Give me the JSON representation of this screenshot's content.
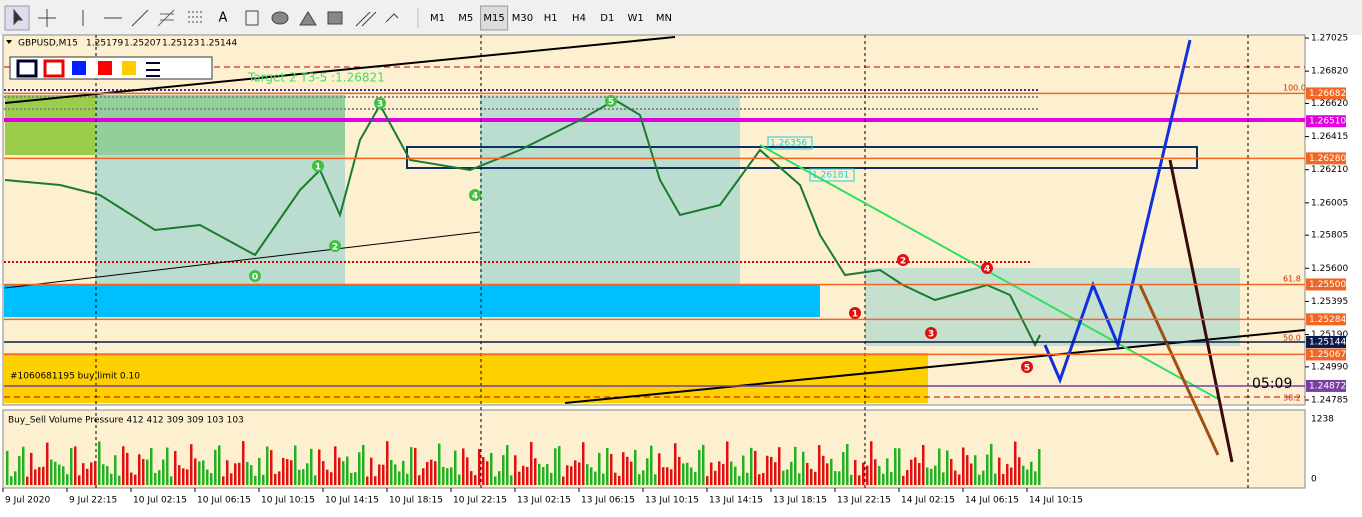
{
  "toolbar": {
    "tools": [
      "A"
    ],
    "timeframes": [
      "M1",
      "M5",
      "M15",
      "M30",
      "H1",
      "H4",
      "D1",
      "W1",
      "MN"
    ],
    "active_timeframe": "M15"
  },
  "header": {
    "symbol": "GBPUSD,M15",
    "ohlc": [
      "1.25179",
      "1.25207",
      "1.25123",
      "1.25144"
    ]
  },
  "price_axis": {
    "ticks": [
      "1.27025",
      "1.26820",
      "1.26620",
      "1.26415",
      "1.26210",
      "1.26005",
      "1.25805",
      "1.25600",
      "1.25395",
      "1.25190",
      "1.24990",
      "1.24785"
    ],
    "markers": [
      {
        "label": "1.26682",
        "color": "#f26522"
      },
      {
        "label": "1.26510",
        "color": "#e000e0"
      },
      {
        "label": "1.26280",
        "color": "#f26522"
      },
      {
        "label": "1.25500",
        "color": "#f26522"
      },
      {
        "label": "1.25284",
        "color": "#f26522"
      },
      {
        "label": "1.25144",
        "color": "#0a1a4a"
      },
      {
        "label": "1.25067",
        "color": "#f26522"
      },
      {
        "label": "1.24872",
        "color": "#7a3fa0"
      }
    ]
  },
  "time_axis": {
    "labels": [
      "9 Jul 2020",
      "9 Jul 22:15",
      "10 Jul 02:15",
      "10 Jul 06:15",
      "10 Jul 10:15",
      "10 Jul 14:15",
      "10 Jul 18:15",
      "10 Jul 22:15",
      "13 Jul 02:15",
      "13 Jul 06:15",
      "13 Jul 10:15",
      "13 Jul 14:15",
      "13 Jul 18:15",
      "13 Jul 22:15",
      "14 Jul 02:15",
      "14 Jul 06:15",
      "14 Jul 10:15"
    ]
  },
  "annotations": {
    "target": "Target 2 T3-5 :1.26821",
    "order": "#1060681195 buy limit 0.10",
    "timer": "05:09",
    "fib": [
      "100.0",
      "61.8",
      "50.0",
      "38.2"
    ],
    "levels": [
      "1.26356",
      "1.26181"
    ],
    "green_waves": [
      "0",
      "1",
      "2",
      "3",
      "4",
      "5"
    ],
    "red_waves": [
      "1",
      "2",
      "3",
      "4",
      "5"
    ]
  },
  "volume_pane": {
    "title": "Buy_Sell Volume Pressure 412 412 309 309 103 103",
    "ticks": [
      "1238",
      "0"
    ]
  }
}
